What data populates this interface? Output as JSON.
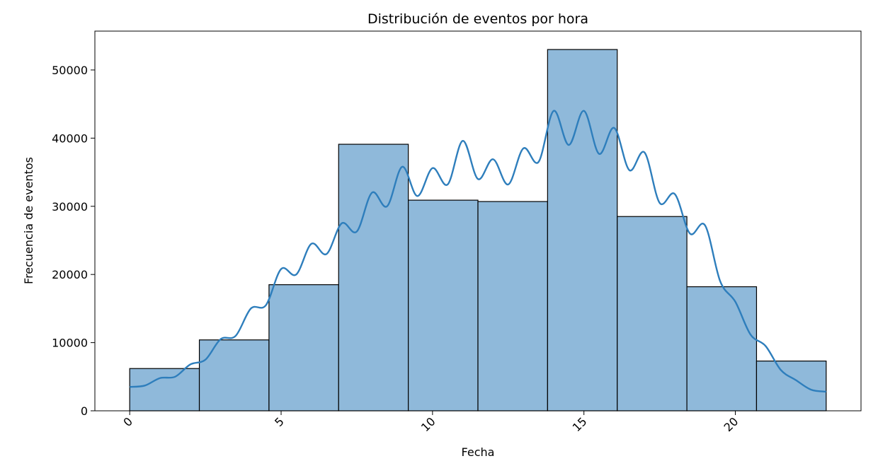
{
  "chart_data": {
    "type": "bar",
    "title": "Distribución de eventos por hora",
    "xlabel": "Fecha",
    "ylabel": "Frecuencia de eventos",
    "xlim": [
      -1.15,
      24.15
    ],
    "ylim": [
      0,
      55700
    ],
    "x_ticks": [
      0,
      5,
      10,
      15,
      20
    ],
    "x_tick_labels": [
      "0",
      "5",
      "10",
      "15",
      "20"
    ],
    "x_tick_rotation": 45,
    "y_ticks": [
      0,
      10000,
      20000,
      30000,
      40000,
      50000
    ],
    "y_tick_labels": [
      "0",
      "10000",
      "20000",
      "30000",
      "40000",
      "50000"
    ],
    "grid": false,
    "bar_color": "#8fb9da",
    "edge_color": "#000000",
    "kde_color": "#2e7ebc",
    "bins": [
      {
        "x0": 0.0,
        "x1": 2.3,
        "count": 6200
      },
      {
        "x0": 2.3,
        "x1": 4.6,
        "count": 10400
      },
      {
        "x0": 4.6,
        "x1": 6.9,
        "count": 18500
      },
      {
        "x0": 6.9,
        "x1": 9.2,
        "count": 39100
      },
      {
        "x0": 9.2,
        "x1": 11.5,
        "count": 30900
      },
      {
        "x0": 11.5,
        "x1": 13.8,
        "count": 30700
      },
      {
        "x0": 13.8,
        "x1": 16.1,
        "count": 53000
      },
      {
        "x0": 16.1,
        "x1": 18.4,
        "count": 28500
      },
      {
        "x0": 18.4,
        "x1": 20.7,
        "count": 18200
      },
      {
        "x0": 20.7,
        "x1": 23.0,
        "count": 7300
      }
    ],
    "series": [
      {
        "type": "line",
        "x": [
          0,
          0.5,
          1,
          1.5,
          2,
          2.5,
          3,
          3.5,
          4,
          4.5,
          5,
          5.5,
          6,
          6.5,
          7,
          7.5,
          8,
          8.5,
          9,
          9.5,
          10,
          10.5,
          11,
          11.5,
          12,
          12.5,
          13,
          13.5,
          14,
          14.5,
          15,
          15.5,
          16,
          16.5,
          17,
          17.5,
          18,
          18.5,
          19,
          19.5,
          20,
          20.5,
          21,
          21.5,
          22,
          22.5,
          23
        ],
        "values": [
          3500,
          3700,
          4800,
          5000,
          6800,
          7500,
          10500,
          11000,
          15000,
          15500,
          20800,
          20000,
          24500,
          23000,
          27500,
          26300,
          32000,
          30000,
          35800,
          31500,
          35600,
          33200,
          39600,
          34000,
          36900,
          33200,
          38500,
          36500,
          44000,
          39000,
          44000,
          37700,
          41500,
          35300,
          37900,
          30500,
          31800,
          26000,
          27200,
          19000,
          16000,
          11200,
          9500,
          6000,
          4500,
          3100,
          2800
        ]
      }
    ]
  }
}
